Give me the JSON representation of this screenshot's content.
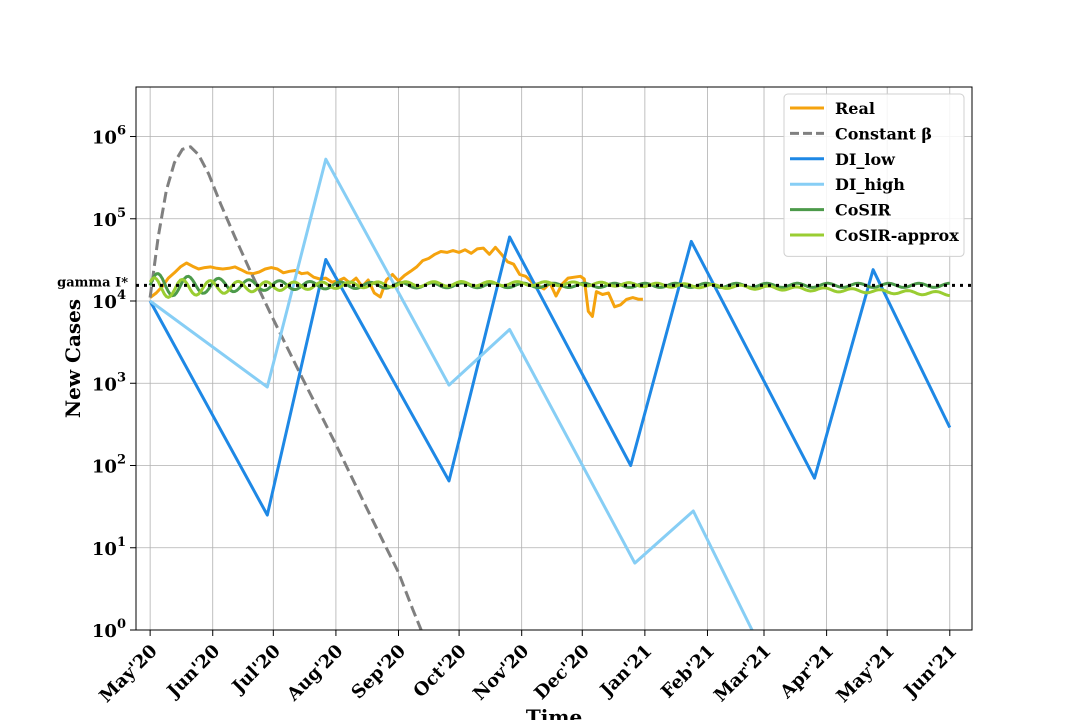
{
  "chart_data": {
    "type": "line",
    "xlabel": "Time",
    "ylabel": "New Cases",
    "y_scale": "log",
    "ylim": [
      1,
      4000000
    ],
    "xlim": [
      "2020-04-24",
      "2021-06-12"
    ],
    "grid": true,
    "legend_position": "top-right",
    "x_ticks": [
      {
        "date": "2020-05-01",
        "label": "May'20"
      },
      {
        "date": "2020-06-01",
        "label": "Jun'20"
      },
      {
        "date": "2020-07-01",
        "label": "Jul'20"
      },
      {
        "date": "2020-08-01",
        "label": "Aug'20"
      },
      {
        "date": "2020-09-01",
        "label": "Sep'20"
      },
      {
        "date": "2020-10-01",
        "label": "Oct'20"
      },
      {
        "date": "2020-11-01",
        "label": "Nov'20"
      },
      {
        "date": "2020-12-01",
        "label": "Dec'20"
      },
      {
        "date": "2021-01-01",
        "label": "Jan'21"
      },
      {
        "date": "2021-02-01",
        "label": "Feb'21"
      },
      {
        "date": "2021-03-01",
        "label": "Mar'21"
      },
      {
        "date": "2021-04-01",
        "label": "Apr'21"
      },
      {
        "date": "2021-05-01",
        "label": "May'21"
      },
      {
        "date": "2021-06-01",
        "label": "Jun'21"
      }
    ],
    "y_ticks": [
      {
        "value": 1,
        "base": "10",
        "exp": "0"
      },
      {
        "value": 10,
        "base": "10",
        "exp": "1"
      },
      {
        "value": 100,
        "base": "10",
        "exp": "2"
      },
      {
        "value": 1000,
        "base": "10",
        "exp": "3"
      },
      {
        "value": 10000,
        "base": "10",
        "exp": "4"
      },
      {
        "value": 100000,
        "base": "10",
        "exp": "5"
      },
      {
        "value": 1000000,
        "base": "10",
        "exp": "6"
      }
    ],
    "reference_line": {
      "label": "gamma I*",
      "value": 15500,
      "color": "#000000"
    },
    "series": [
      {
        "name": "Real",
        "color": "#F5A30E",
        "dash": "solid",
        "points": [
          [
            "2020-05-01",
            11000
          ],
          [
            "2020-05-04",
            12500
          ],
          [
            "2020-05-07",
            15000
          ],
          [
            "2020-05-10",
            19000
          ],
          [
            "2020-05-13",
            22000
          ],
          [
            "2020-05-16",
            26000
          ],
          [
            "2020-05-19",
            29000
          ],
          [
            "2020-05-22",
            26500
          ],
          [
            "2020-05-25",
            24500
          ],
          [
            "2020-05-28",
            25500
          ],
          [
            "2020-05-31",
            26000
          ],
          [
            "2020-06-03",
            25000
          ],
          [
            "2020-06-06",
            24500
          ],
          [
            "2020-06-09",
            25000
          ],
          [
            "2020-06-12",
            26000
          ],
          [
            "2020-06-15",
            24000
          ],
          [
            "2020-06-18",
            22000
          ],
          [
            "2020-06-21",
            21500
          ],
          [
            "2020-06-24",
            22500
          ],
          [
            "2020-06-27",
            24500
          ],
          [
            "2020-06-30",
            25500
          ],
          [
            "2020-07-03",
            24500
          ],
          [
            "2020-07-06",
            22000
          ],
          [
            "2020-07-09",
            23000
          ],
          [
            "2020-07-12",
            23500
          ],
          [
            "2020-07-15",
            21500
          ],
          [
            "2020-07-18",
            22000
          ],
          [
            "2020-07-21",
            19500
          ],
          [
            "2020-07-24",
            18500
          ],
          [
            "2020-07-27",
            19000
          ],
          [
            "2020-07-30",
            17000
          ],
          [
            "2020-08-02",
            17500
          ],
          [
            "2020-08-05",
            19000
          ],
          [
            "2020-08-08",
            16500
          ],
          [
            "2020-08-11",
            19000
          ],
          [
            "2020-08-14",
            15000
          ],
          [
            "2020-08-17",
            18000
          ],
          [
            "2020-08-20",
            12500
          ],
          [
            "2020-08-23",
            11200
          ],
          [
            "2020-08-26",
            18000
          ],
          [
            "2020-08-29",
            21000
          ],
          [
            "2020-09-01",
            17500
          ],
          [
            "2020-09-04",
            20500
          ],
          [
            "2020-09-07",
            23000
          ],
          [
            "2020-09-10",
            26000
          ],
          [
            "2020-09-13",
            31000
          ],
          [
            "2020-09-16",
            33000
          ],
          [
            "2020-09-19",
            37000
          ],
          [
            "2020-09-22",
            40000
          ],
          [
            "2020-09-25",
            39000
          ],
          [
            "2020-09-28",
            41000
          ],
          [
            "2020-10-01",
            39000
          ],
          [
            "2020-10-04",
            42000
          ],
          [
            "2020-10-07",
            38000
          ],
          [
            "2020-10-10",
            43000
          ],
          [
            "2020-10-13",
            44000
          ],
          [
            "2020-10-16",
            37000
          ],
          [
            "2020-10-19",
            45000
          ],
          [
            "2020-10-22",
            37000
          ],
          [
            "2020-10-25",
            30000
          ],
          [
            "2020-10-28",
            28000
          ],
          [
            "2020-10-31",
            21000
          ],
          [
            "2020-11-03",
            20000
          ],
          [
            "2020-11-06",
            17000
          ],
          [
            "2020-11-09",
            15500
          ],
          [
            "2020-11-12",
            14000
          ],
          [
            "2020-11-15",
            16500
          ],
          [
            "2020-11-18",
            11500
          ],
          [
            "2020-11-21",
            16000
          ],
          [
            "2020-11-24",
            19000
          ],
          [
            "2020-11-27",
            19500
          ],
          [
            "2020-11-30",
            20000
          ],
          [
            "2020-12-02",
            18500
          ],
          [
            "2020-12-04",
            7500
          ],
          [
            "2020-12-06",
            6500
          ],
          [
            "2020-12-08",
            13000
          ],
          [
            "2020-12-11",
            12000
          ],
          [
            "2020-12-14",
            12500
          ],
          [
            "2020-12-17",
            8500
          ],
          [
            "2020-12-20",
            9000
          ],
          [
            "2020-12-23",
            10500
          ],
          [
            "2020-12-26",
            11000
          ],
          [
            "2020-12-29",
            10500
          ],
          [
            "2020-12-31",
            10500
          ]
        ]
      },
      {
        "name": "Constant β",
        "color": "#808080",
        "dash": "dashed",
        "points": [
          [
            "2020-05-01",
            11000
          ],
          [
            "2020-05-05",
            60000
          ],
          [
            "2020-05-09",
            220000
          ],
          [
            "2020-05-13",
            480000
          ],
          [
            "2020-05-17",
            700000
          ],
          [
            "2020-05-21",
            750000
          ],
          [
            "2020-05-25",
            600000
          ],
          [
            "2020-05-30",
            350000
          ],
          [
            "2020-06-05",
            150000
          ],
          [
            "2020-06-12",
            60000
          ],
          [
            "2020-06-20",
            22000
          ],
          [
            "2020-07-01",
            6000
          ],
          [
            "2020-07-15",
            1200
          ],
          [
            "2020-08-01",
            180
          ],
          [
            "2020-08-15",
            35
          ],
          [
            "2020-09-01",
            5
          ],
          [
            "2020-09-08",
            1.8
          ],
          [
            "2020-09-13",
            0.9
          ]
        ]
      },
      {
        "name": "DI_low",
        "color": "#1E88E5",
        "dash": "solid",
        "points": [
          [
            "2020-05-01",
            10000
          ],
          [
            "2020-06-28",
            25
          ],
          [
            "2020-07-27",
            32000
          ],
          [
            "2020-09-26",
            65
          ],
          [
            "2020-10-26",
            60000
          ],
          [
            "2020-12-25",
            100
          ],
          [
            "2021-01-24",
            53000
          ],
          [
            "2021-03-26",
            70
          ],
          [
            "2021-04-24",
            24000
          ],
          [
            "2021-06-01",
            290
          ]
        ]
      },
      {
        "name": "DI_high",
        "color": "#87CEF5",
        "dash": "solid",
        "points": [
          [
            "2020-05-01",
            10000
          ],
          [
            "2020-06-28",
            900
          ],
          [
            "2020-07-27",
            530000
          ],
          [
            "2020-09-26",
            950
          ],
          [
            "2020-10-26",
            4500
          ],
          [
            "2020-12-27",
            6.5
          ],
          [
            "2021-01-25",
            28
          ],
          [
            "2021-02-24",
            0.9
          ]
        ]
      },
      {
        "name": "CoSIR",
        "color": "#4C9A4A",
        "dash": "solid",
        "points": []
      },
      {
        "name": "CoSIR-approx",
        "color": "#9ACD32",
        "dash": "solid",
        "points": []
      }
    ]
  }
}
